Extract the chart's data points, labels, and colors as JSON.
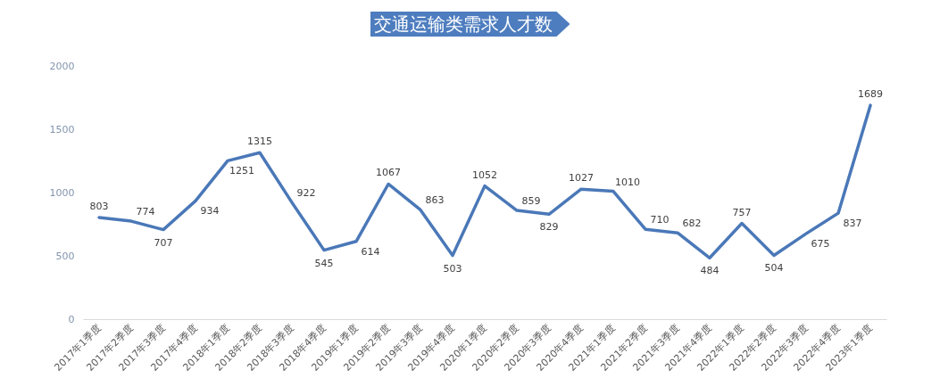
{
  "chart_data": {
    "type": "line",
    "title": "交通运输类需求人才数",
    "categories": [
      "2017年1季度",
      "2017年2季度",
      "2017年3季度",
      "2017年4季度",
      "2018年1季度",
      "2018年2季度",
      "2018年3季度",
      "2018年4季度",
      "2019年1季度",
      "2019年2季度",
      "2019年3季度",
      "2019年4季度",
      "2020年1季度",
      "2020年2季度",
      "2020年3季度",
      "2020年4季度",
      "2021年1季度",
      "2021年2季度",
      "2021年3季度",
      "2021年4季度",
      "2022年1季度",
      "2022年2季度",
      "2022年3季度",
      "2022年4季度",
      "2023年1季度"
    ],
    "series": [
      {
        "color": "#4a78b8",
        "values": [
          803,
          774,
          707,
          934,
          1251,
          1315,
          922,
          545,
          614,
          1067,
          863,
          503,
          1052,
          859,
          829,
          1027,
          1010,
          710,
          682,
          484,
          757,
          504,
          675,
          837,
          1689
        ]
      }
    ],
    "ylim": [
      0,
      2000
    ],
    "yticks": [
      0,
      500,
      1000,
      1500,
      2000
    ],
    "line_style": "solid",
    "data_labels": true
  }
}
